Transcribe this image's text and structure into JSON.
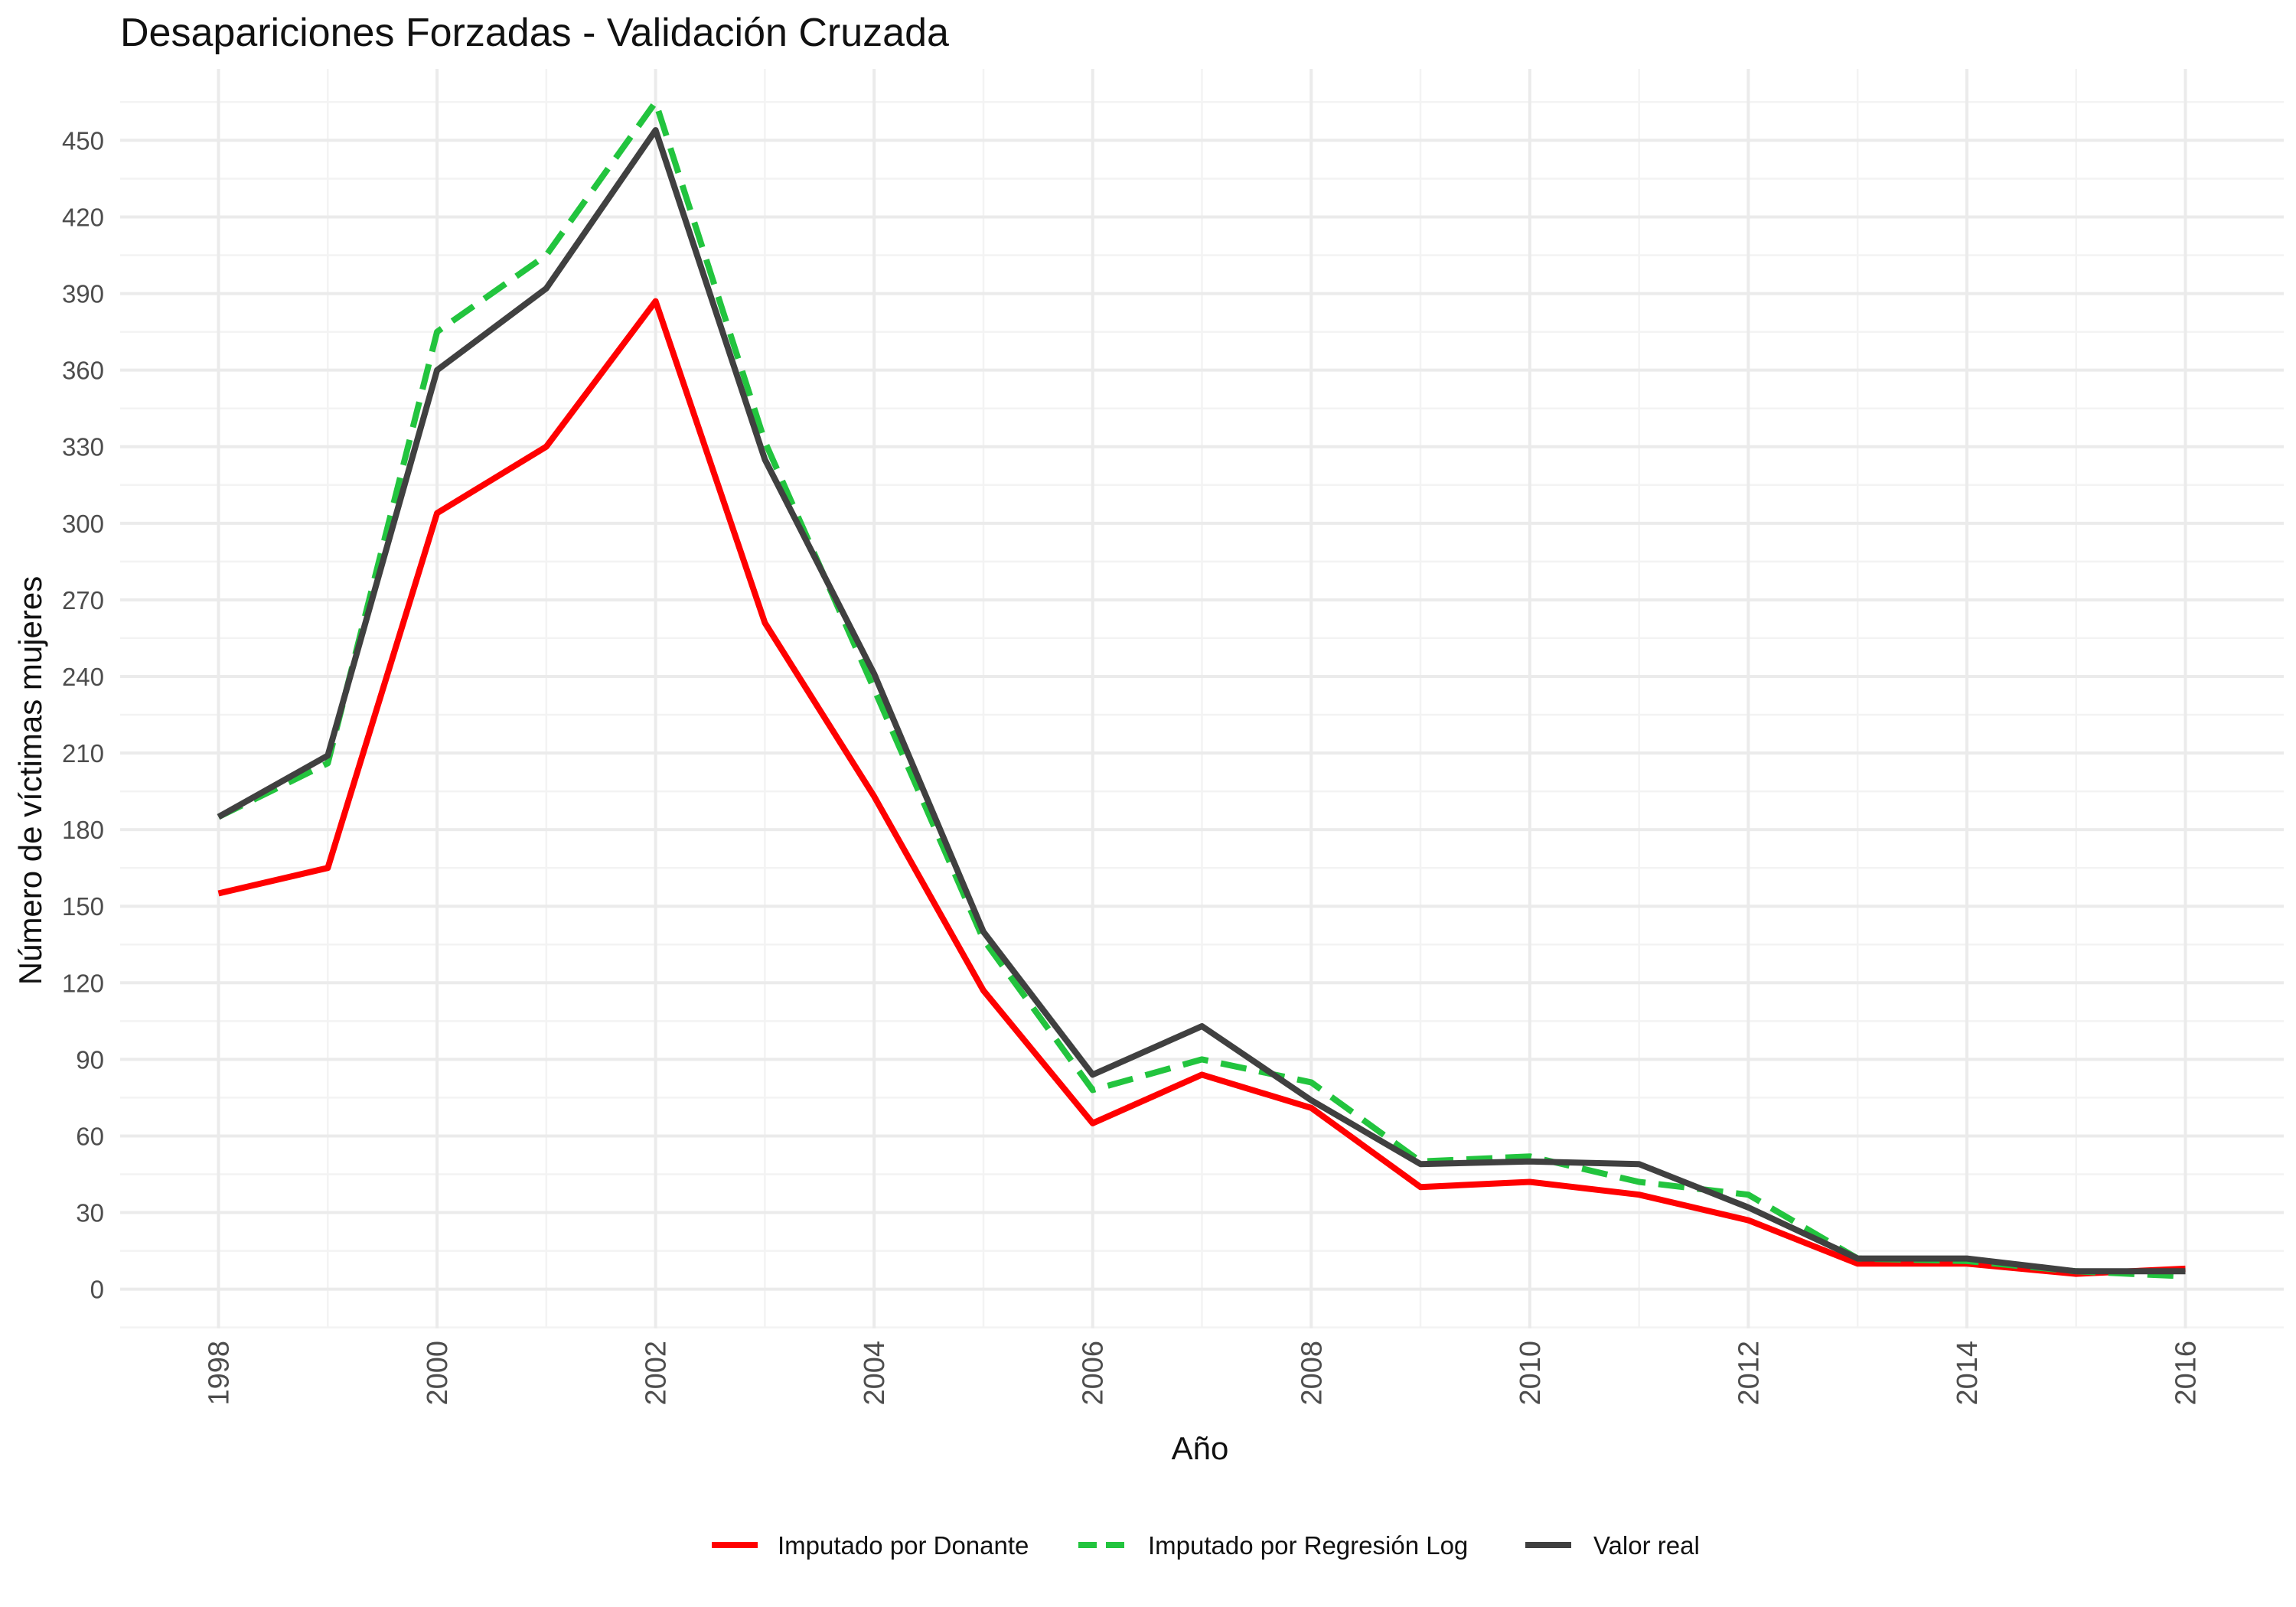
{
  "chart_data": {
    "type": "line",
    "title": "Desapariciones Forzadas - Validación Cruzada",
    "xlabel": "Año",
    "ylabel": "Número de víctimas mujeres",
    "x": [
      1998,
      1999,
      2000,
      2001,
      2002,
      2003,
      2004,
      2005,
      2006,
      2007,
      2008,
      2009,
      2010,
      2011,
      2012,
      2013,
      2014,
      2015,
      2016
    ],
    "x_ticks": [
      "1998",
      "2000",
      "2002",
      "2004",
      "2006",
      "2008",
      "2010",
      "2012",
      "2014",
      "2016"
    ],
    "y_ticks": [
      "0",
      "30",
      "60",
      "90",
      "120",
      "150",
      "180",
      "210",
      "240",
      "270",
      "300",
      "330",
      "360",
      "390",
      "420",
      "450"
    ],
    "xlim": [
      1997.1,
      2016.9
    ],
    "ylim": [
      -15.4,
      478
    ],
    "grid": true,
    "legend_position": "bottom",
    "series": [
      {
        "name": "Imputado por Donante",
        "color": "#ff0000",
        "dash": "solid",
        "values": [
          155,
          165,
          304,
          330,
          387,
          261,
          193,
          117,
          65,
          84,
          71,
          40,
          42,
          37,
          27,
          10,
          10,
          6,
          8
        ]
      },
      {
        "name": "Imputado por Regresión Log",
        "color": "#22c43e",
        "dash": "dashed",
        "values": [
          185,
          206,
          375,
          405,
          465,
          332,
          235,
          137,
          78,
          90,
          81,
          50,
          52,
          42,
          37,
          12,
          11,
          7,
          5
        ]
      },
      {
        "name": "Valor real",
        "color": "#404040",
        "dash": "solid",
        "values": [
          185,
          209,
          360,
          392,
          454,
          325,
          241,
          140,
          84,
          103,
          74,
          49,
          50,
          49,
          32,
          12,
          12,
          7,
          7
        ]
      }
    ]
  }
}
